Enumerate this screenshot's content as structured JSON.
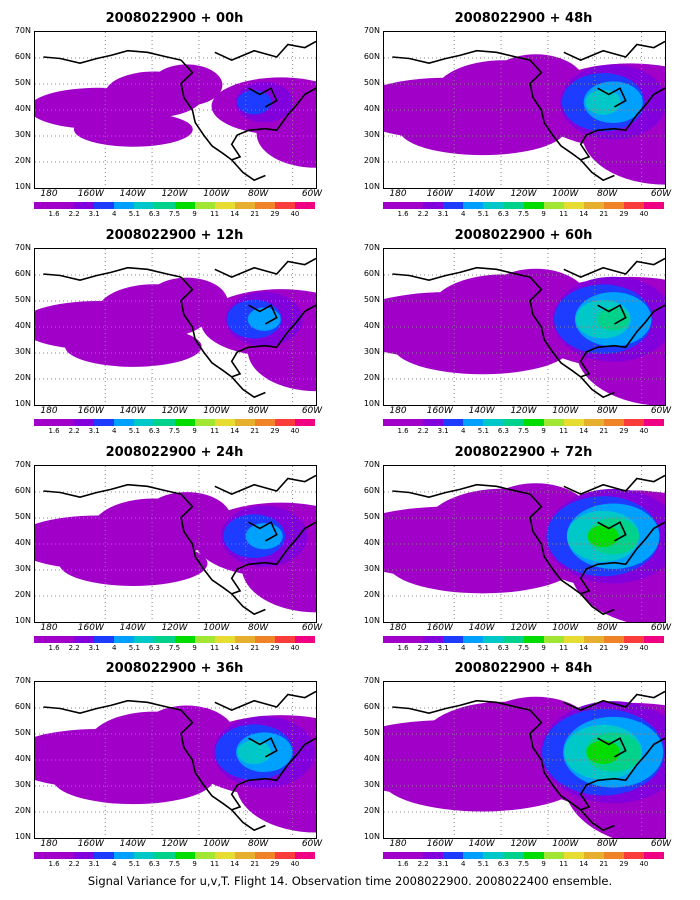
{
  "footer": "Signal Variance for u,v,T. Flight 14. Observation time 2008022900. 2008022400 ensemble.",
  "y_axis_labels": [
    "70N",
    "60N",
    "50N",
    "40N",
    "30N",
    "20N",
    "10N"
  ],
  "x_axis_labels": [
    "180",
    "160W",
    "140W",
    "120W",
    "100W",
    "80W",
    "60W"
  ],
  "colorbar": {
    "labels": [
      "1.6",
      "2.2",
      "3.1",
      "4",
      "5.1",
      "6.3",
      "7.5",
      "9",
      "11",
      "14",
      "21",
      "29",
      "40"
    ],
    "colors": [
      "#a000c8",
      "#8200dc",
      "#1e3cff",
      "#00a0ff",
      "#00c8c8",
      "#00d28c",
      "#00dc00",
      "#a0e632",
      "#e6dc32",
      "#e6af2d",
      "#f08228",
      "#fa3c3c",
      "#f00082"
    ]
  },
  "panels": [
    {
      "id": "p00",
      "title": "2008022900 + 00h",
      "level": 0.15
    },
    {
      "id": "p48",
      "title": "2008022900 + 48h",
      "level": 0.55
    },
    {
      "id": "p12",
      "title": "2008022900 + 12h",
      "level": 0.3
    },
    {
      "id": "p60",
      "title": "2008022900 + 60h",
      "level": 0.65
    },
    {
      "id": "p24",
      "title": "2008022900 + 24h",
      "level": 0.4
    },
    {
      "id": "p72",
      "title": "2008022900 + 72h",
      "level": 0.75
    },
    {
      "id": "p36",
      "title": "2008022900 + 36h",
      "level": 0.5
    },
    {
      "id": "p84",
      "title": "2008022900 + 84h",
      "level": 0.85
    }
  ]
}
